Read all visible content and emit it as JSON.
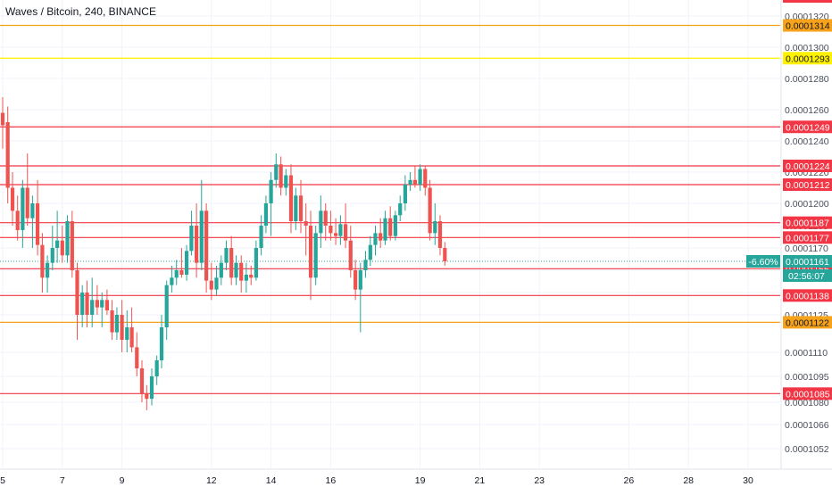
{
  "header": {
    "title": "Waves / Bitcoin, 240, BINANCE"
  },
  "colors": {
    "up": "#26a69a",
    "down": "#ef5350",
    "red_level": "#f23645",
    "orange_level": "#f7a21b",
    "yellow_level": "#fff200",
    "countdown_bg": "#26a69a",
    "grid": "#f0f3fa"
  },
  "chart_data": {
    "type": "candlestick",
    "title": "Waves / Bitcoin, 240, BINANCE",
    "symbol": "Waves / Bitcoin",
    "interval": "240",
    "exchange": "BINANCE",
    "ylim": [
      0.0001041,
      0.0001331
    ],
    "y_ticks": [
      "0.0001320",
      "0.0001300",
      "0.0001280",
      "0.0001260",
      "0.0001240",
      "0.0001220",
      "0.0001200",
      "0.0001185",
      "0.0001170",
      "0.0001155",
      "0.0001140",
      "0.0001125",
      "0.0001110",
      "0.0001095",
      "0.0001080",
      "0.0001066",
      "0.0001052"
    ],
    "y_tick_values": [
      0.000132,
      0.00013,
      0.000128,
      0.000126,
      0.000124,
      0.000122,
      0.00012,
      0.0001185,
      0.000117,
      0.0001155,
      0.000114,
      0.0001125,
      0.000111,
      0.0001095,
      0.000108,
      0.0001066,
      0.0001052
    ],
    "x_ticks": [
      {
        "label": "5",
        "day": 5
      },
      {
        "label": "7",
        "day": 7
      },
      {
        "label": "9",
        "day": 9
      },
      {
        "label": "12",
        "day": 12
      },
      {
        "label": "14",
        "day": 14
      },
      {
        "label": "16",
        "day": 16
      },
      {
        "label": "19",
        "day": 19
      },
      {
        "label": "21",
        "day": 21
      },
      {
        "label": "23",
        "day": 23
      },
      {
        "label": "26",
        "day": 26
      },
      {
        "label": "28",
        "day": 28
      },
      {
        "label": "30",
        "day": 30
      }
    ],
    "candle_interval_days": 0.1667,
    "horizontal_levels": [
      {
        "label": "0.0001314",
        "value": 0.0001314,
        "color": "orange"
      },
      {
        "label": "0.0001293",
        "value": 0.0001293,
        "color": "yellow"
      },
      {
        "label": "0.0001249",
        "value": 0.0001249,
        "color": "red"
      },
      {
        "label": "0.0001224",
        "value": 0.0001224,
        "color": "red"
      },
      {
        "label": "0.0001212",
        "value": 0.0001212,
        "color": "red"
      },
      {
        "label": "0.0001187",
        "value": 0.0001187,
        "color": "red"
      },
      {
        "label": "0.0001177",
        "value": 0.0001177,
        "color": "red"
      },
      {
        "label": "0.0001156",
        "value": 0.0001156,
        "color": "red"
      },
      {
        "label": "0.0001138",
        "value": 0.0001138,
        "color": "red"
      },
      {
        "label": "0.0001122",
        "value": 0.0001122,
        "color": "orange"
      },
      {
        "label": "0.0001085",
        "value": 0.0001085,
        "color": "red"
      }
    ],
    "last_price": {
      "value": 0.0001161,
      "label": "0.0001161",
      "change": "-6.60%",
      "countdown": "02:56:07"
    },
    "candles": [
      {
        "t": 5.0,
        "o": 0.0001258,
        "h": 0.0001268,
        "l": 0.0001235,
        "c": 0.000125
      },
      {
        "t": 5.17,
        "o": 0.0001252,
        "h": 0.0001262,
        "l": 0.00012,
        "c": 0.000121
      },
      {
        "t": 5.33,
        "o": 0.000121,
        "h": 0.000122,
        "l": 0.0001185,
        "c": 0.0001195
      },
      {
        "t": 5.5,
        "o": 0.0001195,
        "h": 0.0001205,
        "l": 0.0001175,
        "c": 0.0001182
      },
      {
        "t": 5.67,
        "o": 0.0001182,
        "h": 0.0001215,
        "l": 0.000117,
        "c": 0.000121
      },
      {
        "t": 5.83,
        "o": 0.000121,
        "h": 0.0001232,
        "l": 0.0001185,
        "c": 0.000119
      },
      {
        "t": 6.0,
        "o": 0.000119,
        "h": 0.0001205,
        "l": 0.000117,
        "c": 0.00012
      },
      {
        "t": 6.17,
        "o": 0.00012,
        "h": 0.0001215,
        "l": 0.0001165,
        "c": 0.0001172
      },
      {
        "t": 6.33,
        "o": 0.0001172,
        "h": 0.000118,
        "l": 0.000114,
        "c": 0.000115
      },
      {
        "t": 6.5,
        "o": 0.000115,
        "h": 0.0001165,
        "l": 0.000114,
        "c": 0.000116
      },
      {
        "t": 6.67,
        "o": 0.000116,
        "h": 0.0001185,
        "l": 0.0001155,
        "c": 0.000117
      },
      {
        "t": 6.83,
        "o": 0.000117,
        "h": 0.0001195,
        "l": 0.000116,
        "c": 0.0001175
      },
      {
        "t": 7.0,
        "o": 0.0001175,
        "h": 0.0001185,
        "l": 0.000116,
        "c": 0.0001165
      },
      {
        "t": 7.17,
        "o": 0.0001165,
        "h": 0.0001192,
        "l": 0.000116,
        "c": 0.0001188
      },
      {
        "t": 7.33,
        "o": 0.0001188,
        "h": 0.0001195,
        "l": 0.000115,
        "c": 0.0001155
      },
      {
        "t": 7.5,
        "o": 0.0001155,
        "h": 0.000116,
        "l": 0.0001115,
        "c": 0.0001125
      },
      {
        "t": 7.67,
        "o": 0.0001125,
        "h": 0.0001145,
        "l": 0.000112,
        "c": 0.000114
      },
      {
        "t": 7.83,
        "o": 0.000114,
        "h": 0.0001148,
        "l": 0.000112,
        "c": 0.0001125
      },
      {
        "t": 8.0,
        "o": 0.0001125,
        "h": 0.000115,
        "l": 0.000112,
        "c": 0.0001135
      },
      {
        "t": 8.17,
        "o": 0.0001135,
        "h": 0.0001145,
        "l": 0.0001125,
        "c": 0.000113
      },
      {
        "t": 8.33,
        "o": 0.000113,
        "h": 0.000114,
        "l": 0.000112,
        "c": 0.0001135
      },
      {
        "t": 8.5,
        "o": 0.0001135,
        "h": 0.0001142,
        "l": 0.0001125,
        "c": 0.0001128
      },
      {
        "t": 8.67,
        "o": 0.0001128,
        "h": 0.0001135,
        "l": 0.0001115,
        "c": 0.0001118
      },
      {
        "t": 8.83,
        "o": 0.0001118,
        "h": 0.000113,
        "l": 0.0001115,
        "c": 0.0001125
      },
      {
        "t": 9.0,
        "o": 0.0001125,
        "h": 0.0001135,
        "l": 0.000111,
        "c": 0.0001115
      },
      {
        "t": 9.17,
        "o": 0.0001115,
        "h": 0.0001128,
        "l": 0.000111,
        "c": 0.000112
      },
      {
        "t": 9.33,
        "o": 0.000112,
        "h": 0.000113,
        "l": 0.000111,
        "c": 0.0001112
      },
      {
        "t": 9.5,
        "o": 0.0001112,
        "h": 0.0001118,
        "l": 0.0001095,
        "c": 0.00011
      },
      {
        "t": 9.67,
        "o": 0.00011,
        "h": 0.0001105,
        "l": 0.000108,
        "c": 0.0001085
      },
      {
        "t": 9.83,
        "o": 0.0001085,
        "h": 0.000109,
        "l": 0.0001075,
        "c": 0.0001082
      },
      {
        "t": 10.0,
        "o": 0.0001082,
        "h": 0.00011,
        "l": 0.0001078,
        "c": 0.0001095
      },
      {
        "t": 10.17,
        "o": 0.0001095,
        "h": 0.0001108,
        "l": 0.000109,
        "c": 0.0001105
      },
      {
        "t": 10.33,
        "o": 0.0001105,
        "h": 0.0001125,
        "l": 0.00011,
        "c": 0.000112
      },
      {
        "t": 10.5,
        "o": 0.000112,
        "h": 0.0001148,
        "l": 0.0001115,
        "c": 0.0001145
      },
      {
        "t": 10.67,
        "o": 0.0001145,
        "h": 0.0001158,
        "l": 0.000114,
        "c": 0.000115
      },
      {
        "t": 10.83,
        "o": 0.000115,
        "h": 0.0001162,
        "l": 0.0001145,
        "c": 0.0001155
      },
      {
        "t": 11.0,
        "o": 0.0001155,
        "h": 0.000117,
        "l": 0.000115,
        "c": 0.0001152
      },
      {
        "t": 11.17,
        "o": 0.0001152,
        "h": 0.0001172,
        "l": 0.0001148,
        "c": 0.0001168
      },
      {
        "t": 11.33,
        "o": 0.0001168,
        "h": 0.0001195,
        "l": 0.0001165,
        "c": 0.0001185
      },
      {
        "t": 11.5,
        "o": 0.0001185,
        "h": 0.00012,
        "l": 0.000115,
        "c": 0.000116
      },
      {
        "t": 11.67,
        "o": 0.000116,
        "h": 0.0001215,
        "l": 0.0001155,
        "c": 0.0001195
      },
      {
        "t": 11.83,
        "o": 0.0001195,
        "h": 0.00012,
        "l": 0.000114,
        "c": 0.0001148
      },
      {
        "t": 12.0,
        "o": 0.0001148,
        "h": 0.000116,
        "l": 0.0001135,
        "c": 0.0001142
      },
      {
        "t": 12.17,
        "o": 0.0001142,
        "h": 0.0001158,
        "l": 0.0001138,
        "c": 0.000115
      },
      {
        "t": 12.33,
        "o": 0.000115,
        "h": 0.0001165,
        "l": 0.0001145,
        "c": 0.000116
      },
      {
        "t": 12.5,
        "o": 0.000116,
        "h": 0.0001175,
        "l": 0.0001155,
        "c": 0.000117
      },
      {
        "t": 12.67,
        "o": 0.000117,
        "h": 0.0001178,
        "l": 0.0001145,
        "c": 0.000115
      },
      {
        "t": 12.83,
        "o": 0.000115,
        "h": 0.0001165,
        "l": 0.0001145,
        "c": 0.000116
      },
      {
        "t": 13.0,
        "o": 0.000116,
        "h": 0.0001165,
        "l": 0.000114,
        "c": 0.0001148
      },
      {
        "t": 13.17,
        "o": 0.0001148,
        "h": 0.000116,
        "l": 0.000114,
        "c": 0.0001152
      },
      {
        "t": 13.33,
        "o": 0.0001152,
        "h": 0.0001158,
        "l": 0.0001145,
        "c": 0.000115
      },
      {
        "t": 13.5,
        "o": 0.000115,
        "h": 0.0001175,
        "l": 0.0001148,
        "c": 0.000117
      },
      {
        "t": 13.67,
        "o": 0.000117,
        "h": 0.0001192,
        "l": 0.0001165,
        "c": 0.0001185
      },
      {
        "t": 13.83,
        "o": 0.0001185,
        "h": 0.0001205,
        "l": 0.000118,
        "c": 0.00012
      },
      {
        "t": 14.0,
        "o": 0.00012,
        "h": 0.000122,
        "l": 0.0001178,
        "c": 0.0001215
      },
      {
        "t": 14.17,
        "o": 0.0001215,
        "h": 0.0001232,
        "l": 0.000121,
        "c": 0.0001225
      },
      {
        "t": 14.33,
        "o": 0.0001225,
        "h": 0.000123,
        "l": 0.0001205,
        "c": 0.000121
      },
      {
        "t": 14.5,
        "o": 0.000121,
        "h": 0.0001222,
        "l": 0.0001205,
        "c": 0.0001218
      },
      {
        "t": 14.67,
        "o": 0.0001218,
        "h": 0.0001225,
        "l": 0.000118,
        "c": 0.0001188
      },
      {
        "t": 14.83,
        "o": 0.0001188,
        "h": 0.000121,
        "l": 0.0001182,
        "c": 0.0001205
      },
      {
        "t": 15.0,
        "o": 0.0001205,
        "h": 0.0001215,
        "l": 0.000118,
        "c": 0.0001188
      },
      {
        "t": 15.17,
        "o": 0.0001188,
        "h": 0.00012,
        "l": 0.0001165,
        "c": 0.0001185
      },
      {
        "t": 15.33,
        "o": 0.0001185,
        "h": 0.0001195,
        "l": 0.0001135,
        "c": 0.000115
      },
      {
        "t": 15.5,
        "o": 0.000115,
        "h": 0.0001185,
        "l": 0.0001145,
        "c": 0.000118
      },
      {
        "t": 15.67,
        "o": 0.000118,
        "h": 0.0001205,
        "l": 0.000117,
        "c": 0.0001195
      },
      {
        "t": 15.83,
        "o": 0.0001195,
        "h": 0.00012,
        "l": 0.0001175,
        "c": 0.0001185
      },
      {
        "t": 16.0,
        "o": 0.0001185,
        "h": 0.0001195,
        "l": 0.0001175,
        "c": 0.000118
      },
      {
        "t": 16.17,
        "o": 0.000118,
        "h": 0.000119,
        "l": 0.0001172,
        "c": 0.0001178
      },
      {
        "t": 16.33,
        "o": 0.0001178,
        "h": 0.0001192,
        "l": 0.0001172,
        "c": 0.0001186
      },
      {
        "t": 16.5,
        "o": 0.0001186,
        "h": 0.00012,
        "l": 0.000117,
        "c": 0.0001175
      },
      {
        "t": 16.67,
        "o": 0.0001175,
        "h": 0.0001185,
        "l": 0.000115,
        "c": 0.0001155
      },
      {
        "t": 16.83,
        "o": 0.0001155,
        "h": 0.0001162,
        "l": 0.0001135,
        "c": 0.0001142
      },
      {
        "t": 17.0,
        "o": 0.0001142,
        "h": 0.000116,
        "l": 0.0001118,
        "c": 0.0001155
      },
      {
        "t": 17.17,
        "o": 0.0001155,
        "h": 0.0001168,
        "l": 0.000115,
        "c": 0.0001162
      },
      {
        "t": 17.33,
        "o": 0.0001162,
        "h": 0.0001178,
        "l": 0.0001158,
        "c": 0.0001172
      },
      {
        "t": 17.5,
        "o": 0.0001172,
        "h": 0.0001185,
        "l": 0.0001165,
        "c": 0.000118
      },
      {
        "t": 17.67,
        "o": 0.000118,
        "h": 0.000119,
        "l": 0.000117,
        "c": 0.0001175
      },
      {
        "t": 17.83,
        "o": 0.0001175,
        "h": 0.0001195,
        "l": 0.0001172,
        "c": 0.000119
      },
      {
        "t": 18.0,
        "o": 0.000119,
        "h": 0.0001198,
        "l": 0.0001175,
        "c": 0.0001178
      },
      {
        "t": 18.17,
        "o": 0.0001178,
        "h": 0.0001195,
        "l": 0.0001175,
        "c": 0.0001192
      },
      {
        "t": 18.33,
        "o": 0.0001192,
        "h": 0.0001205,
        "l": 0.0001188,
        "c": 0.00012
      },
      {
        "t": 18.5,
        "o": 0.00012,
        "h": 0.0001218,
        "l": 0.0001195,
        "c": 0.0001212
      },
      {
        "t": 18.67,
        "o": 0.0001212,
        "h": 0.000122,
        "l": 0.0001208,
        "c": 0.0001215
      },
      {
        "t": 18.83,
        "o": 0.0001215,
        "h": 0.0001224,
        "l": 0.000121,
        "c": 0.0001212
      },
      {
        "t": 19.0,
        "o": 0.0001212,
        "h": 0.0001225,
        "l": 0.0001208,
        "c": 0.0001222
      },
      {
        "t": 19.17,
        "o": 0.0001222,
        "h": 0.0001224,
        "l": 0.0001205,
        "c": 0.000121
      },
      {
        "t": 19.33,
        "o": 0.000121,
        "h": 0.0001215,
        "l": 0.0001175,
        "c": 0.000118
      },
      {
        "t": 19.5,
        "o": 0.000118,
        "h": 0.00012,
        "l": 0.0001172,
        "c": 0.0001188
      },
      {
        "t": 19.67,
        "o": 0.0001188,
        "h": 0.0001192,
        "l": 0.0001165,
        "c": 0.000117
      },
      {
        "t": 19.83,
        "o": 0.000117,
        "h": 0.0001174,
        "l": 0.0001158,
        "c": 0.0001161
      }
    ]
  }
}
